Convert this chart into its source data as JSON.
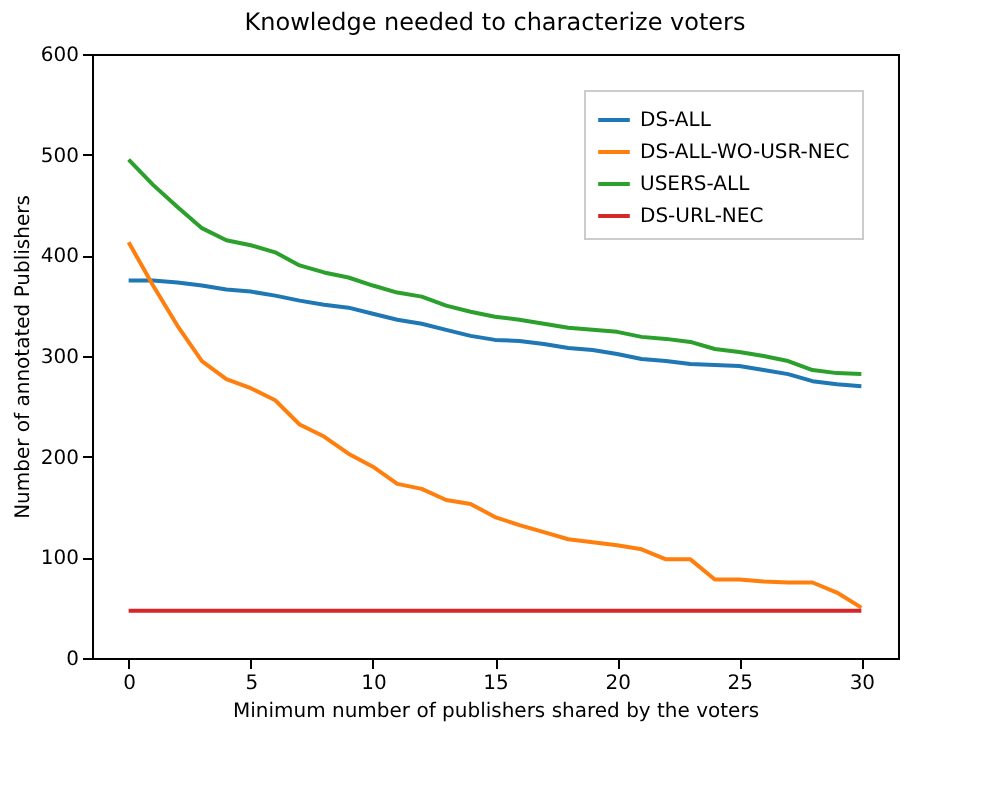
{
  "chart_data": {
    "type": "line",
    "title": "Knowledge needed to characterize voters",
    "xlabel": "Minimum number of publishers shared by the voters",
    "ylabel": "Number of annotated Publishers",
    "x": [
      0,
      1,
      2,
      3,
      4,
      5,
      6,
      7,
      8,
      9,
      10,
      11,
      12,
      13,
      14,
      15,
      16,
      17,
      18,
      19,
      20,
      21,
      22,
      23,
      24,
      25,
      26,
      27,
      28,
      29,
      30
    ],
    "series": [
      {
        "name": "DS-ALL",
        "color": "#1f77b4",
        "values": [
          375,
          375,
          373,
          370,
          366,
          364,
          360,
          355,
          351,
          348,
          342,
          336,
          332,
          326,
          320,
          316,
          315,
          312,
          308,
          306,
          302,
          297,
          295,
          292,
          291,
          290,
          286,
          282,
          275,
          272,
          270
        ]
      },
      {
        "name": "DS-ALL-WO-USR-NEC",
        "color": "#ff7f0e",
        "values": [
          413,
          370,
          330,
          295,
          277,
          268,
          256,
          232,
          220,
          203,
          190,
          173,
          168,
          157,
          153,
          140,
          132,
          125,
          118,
          115,
          112,
          108,
          98,
          98,
          78,
          78,
          76,
          75,
          75,
          65,
          50
        ]
      },
      {
        "name": "USERS-ALL",
        "color": "#2ca02c",
        "values": [
          495,
          470,
          448,
          427,
          415,
          410,
          403,
          390,
          383,
          378,
          370,
          363,
          359,
          350,
          344,
          339,
          336,
          332,
          328,
          326,
          324,
          319,
          317,
          314,
          307,
          304,
          300,
          295,
          286,
          283,
          282
        ]
      },
      {
        "name": "DS-URL-NEC",
        "color": "#d62728",
        "values": [
          47,
          47,
          47,
          47,
          47,
          47,
          47,
          47,
          47,
          47,
          47,
          47,
          47,
          47,
          47,
          47,
          47,
          47,
          47,
          47,
          47,
          47,
          47,
          47,
          47,
          47,
          47,
          47,
          47,
          47,
          47
        ]
      }
    ],
    "xlim": [
      -1.5,
      31.5
    ],
    "xticks": [
      0,
      5,
      10,
      15,
      20,
      25,
      30
    ],
    "ylim": [
      0,
      600
    ],
    "yticks": [
      0,
      100,
      200,
      300,
      400,
      500,
      600
    ],
    "grid": false,
    "legend": "top right"
  }
}
